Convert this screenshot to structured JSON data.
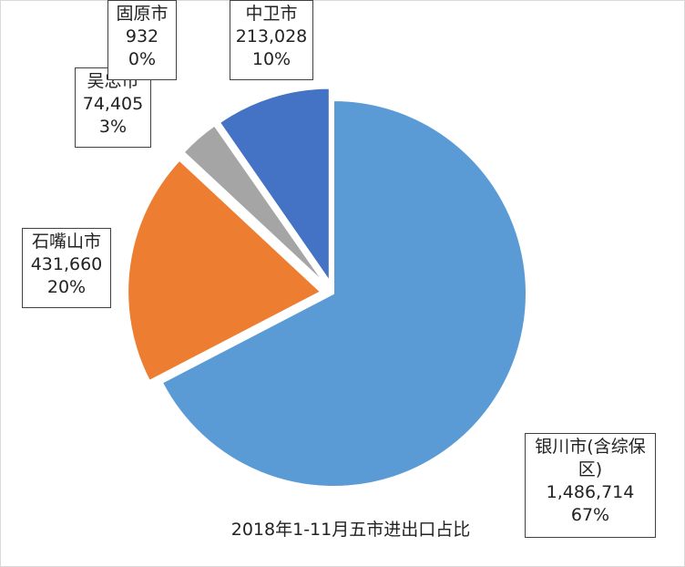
{
  "chart_data": {
    "type": "pie",
    "title": "2018年1-11月五市进出口占比",
    "slices": [
      {
        "name": "银川市(含综保区)",
        "value": 1486714,
        "value_label": "1,486,714",
        "percent_label": "67%",
        "color": "#5b9bd5",
        "exploded": false
      },
      {
        "name": "石嘴山市",
        "value": 431660,
        "value_label": "431,660",
        "percent_label": "20%",
        "color": "#ed7d31",
        "exploded": true
      },
      {
        "name": "吴忠市",
        "value": 74405,
        "value_label": "74,405",
        "percent_label": "3%",
        "color": "#a5a5a5",
        "exploded": true
      },
      {
        "name": "固原市",
        "value": 932,
        "value_label": "932",
        "percent_label": "0%",
        "color": "#ffc000",
        "exploded": true
      },
      {
        "name": "中卫市",
        "value": 213028,
        "value_label": "213,028",
        "percent_label": "10%",
        "color": "#4472c4",
        "exploded": true
      }
    ]
  },
  "labels": {
    "yinchuan": {
      "name_line1": "银川市(含综保",
      "name_line2": "区)",
      "value": "1,486,714",
      "percent": "67%"
    },
    "shizuishan": {
      "name": "石嘴山市",
      "value": "431,660",
      "percent": "20%"
    },
    "wuzhong": {
      "name": "吴忠市",
      "value": "74,405",
      "percent": "3%"
    },
    "guyuan": {
      "name": "固原市",
      "value": "932",
      "percent": "0%"
    },
    "zhongwei": {
      "name": "中卫市",
      "value": "213,028",
      "percent": "10%"
    }
  }
}
